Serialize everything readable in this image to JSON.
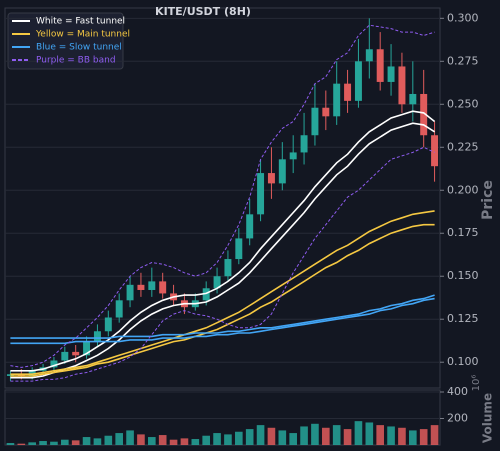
{
  "chart_data": {
    "type": "candlestick",
    "title": "KITE/USDT (8H)",
    "ylabel": "Price",
    "ylim": [
      0.085,
      0.306
    ],
    "yticks": [
      {
        "value": 0.1,
        "label": "0.100"
      },
      {
        "value": 0.125,
        "label": "0.125"
      },
      {
        "value": 0.15,
        "label": "0.150"
      },
      {
        "value": 0.175,
        "label": "0.175"
      },
      {
        "value": 0.2,
        "label": "0.200"
      },
      {
        "value": 0.225,
        "label": "0.225"
      },
      {
        "value": 0.25,
        "label": "0.250"
      },
      {
        "value": 0.275,
        "label": "0.275"
      },
      {
        "value": 0.3,
        "label": "0.300"
      }
    ],
    "grid": true,
    "legend": "upper left",
    "up_color": "#26a69a",
    "down_color": "#e05c5c",
    "candles": {
      "open": [
        0.092,
        0.093,
        0.092,
        0.095,
        0.097,
        0.101,
        0.106,
        0.104,
        0.112,
        0.118,
        0.126,
        0.136,
        0.145,
        0.142,
        0.147,
        0.14,
        0.136,
        0.132,
        0.136,
        0.143,
        0.15,
        0.16,
        0.172,
        0.186,
        0.21,
        0.204,
        0.218,
        0.222,
        0.232,
        0.248,
        0.243,
        0.262,
        0.252,
        0.275,
        0.282,
        0.263,
        0.272,
        0.25,
        0.256,
        0.232
      ],
      "high": [
        0.095,
        0.096,
        0.097,
        0.099,
        0.103,
        0.109,
        0.11,
        0.115,
        0.122,
        0.13,
        0.14,
        0.15,
        0.152,
        0.155,
        0.152,
        0.145,
        0.14,
        0.14,
        0.147,
        0.155,
        0.165,
        0.178,
        0.195,
        0.218,
        0.225,
        0.228,
        0.232,
        0.245,
        0.262,
        0.258,
        0.275,
        0.27,
        0.288,
        0.3,
        0.292,
        0.285,
        0.28,
        0.275,
        0.27,
        0.24
      ],
      "low": [
        0.089,
        0.09,
        0.09,
        0.093,
        0.095,
        0.099,
        0.1,
        0.102,
        0.109,
        0.115,
        0.123,
        0.132,
        0.138,
        0.138,
        0.137,
        0.133,
        0.128,
        0.13,
        0.133,
        0.14,
        0.147,
        0.157,
        0.168,
        0.182,
        0.195,
        0.2,
        0.21,
        0.215,
        0.226,
        0.235,
        0.238,
        0.245,
        0.248,
        0.265,
        0.258,
        0.255,
        0.245,
        0.24,
        0.225,
        0.205
      ],
      "close": [
        0.093,
        0.092,
        0.095,
        0.097,
        0.101,
        0.106,
        0.104,
        0.112,
        0.118,
        0.126,
        0.136,
        0.145,
        0.142,
        0.147,
        0.14,
        0.136,
        0.132,
        0.136,
        0.143,
        0.15,
        0.16,
        0.172,
        0.186,
        0.21,
        0.204,
        0.218,
        0.222,
        0.232,
        0.248,
        0.243,
        0.262,
        0.252,
        0.275,
        0.282,
        0.263,
        0.272,
        0.25,
        0.256,
        0.232,
        0.214
      ]
    },
    "volume": {
      "label": "Volume",
      "unit": "10⁶",
      "ylim": [
        0,
        415
      ],
      "yticks": [
        200,
        400
      ],
      "values": [
        15,
        10,
        20,
        30,
        25,
        40,
        35,
        60,
        50,
        70,
        90,
        110,
        80,
        60,
        75,
        40,
        50,
        45,
        70,
        90,
        80,
        100,
        120,
        150,
        130,
        110,
        90,
        140,
        160,
        130,
        150,
        120,
        180,
        170,
        150,
        140,
        130,
        110,
        120,
        150
      ]
    },
    "series": [
      {
        "name": "White = Fast tunnel",
        "color": "#ffffff",
        "dashed": false,
        "upper": [
          0.095,
          0.095,
          0.095,
          0.096,
          0.098,
          0.1,
          0.102,
          0.105,
          0.109,
          0.113,
          0.118,
          0.124,
          0.129,
          0.133,
          0.136,
          0.138,
          0.139,
          0.139,
          0.14,
          0.143,
          0.147,
          0.152,
          0.158,
          0.166,
          0.173,
          0.18,
          0.187,
          0.194,
          0.202,
          0.209,
          0.216,
          0.221,
          0.228,
          0.234,
          0.238,
          0.242,
          0.244,
          0.246,
          0.245,
          0.24
        ],
        "lower": [
          0.091,
          0.091,
          0.091,
          0.092,
          0.094,
          0.096,
          0.098,
          0.101,
          0.104,
          0.108,
          0.113,
          0.119,
          0.124,
          0.128,
          0.131,
          0.133,
          0.134,
          0.134,
          0.135,
          0.138,
          0.142,
          0.146,
          0.152,
          0.159,
          0.166,
          0.173,
          0.18,
          0.187,
          0.195,
          0.202,
          0.209,
          0.214,
          0.221,
          0.227,
          0.231,
          0.235,
          0.237,
          0.239,
          0.238,
          0.234
        ]
      },
      {
        "name": "Yellow = Main tunnel",
        "color": "#f5c842",
        "dashed": false,
        "upper": [
          0.093,
          0.093,
          0.093,
          0.094,
          0.095,
          0.096,
          0.097,
          0.098,
          0.1,
          0.102,
          0.104,
          0.106,
          0.108,
          0.11,
          0.112,
          0.114,
          0.116,
          0.118,
          0.12,
          0.123,
          0.126,
          0.129,
          0.133,
          0.137,
          0.141,
          0.145,
          0.149,
          0.153,
          0.157,
          0.161,
          0.165,
          0.168,
          0.172,
          0.176,
          0.179,
          0.182,
          0.184,
          0.186,
          0.187,
          0.188
        ],
        "lower": [
          0.092,
          0.092,
          0.092,
          0.093,
          0.094,
          0.095,
          0.096,
          0.097,
          0.099,
          0.1,
          0.102,
          0.104,
          0.106,
          0.108,
          0.11,
          0.112,
          0.113,
          0.115,
          0.117,
          0.119,
          0.122,
          0.125,
          0.128,
          0.132,
          0.135,
          0.139,
          0.143,
          0.147,
          0.151,
          0.155,
          0.158,
          0.162,
          0.165,
          0.169,
          0.172,
          0.175,
          0.177,
          0.179,
          0.18,
          0.18
        ]
      },
      {
        "name": "Blue = Slow tunnel",
        "color": "#42a5f5",
        "dashed": false,
        "upper": [
          0.114,
          0.114,
          0.114,
          0.114,
          0.114,
          0.114,
          0.114,
          0.114,
          0.114,
          0.114,
          0.115,
          0.115,
          0.115,
          0.115,
          0.116,
          0.116,
          0.116,
          0.117,
          0.117,
          0.117,
          0.118,
          0.118,
          0.119,
          0.12,
          0.12,
          0.121,
          0.122,
          0.123,
          0.124,
          0.125,
          0.126,
          0.127,
          0.128,
          0.13,
          0.131,
          0.133,
          0.134,
          0.136,
          0.137,
          0.139
        ],
        "lower": [
          0.111,
          0.111,
          0.111,
          0.111,
          0.111,
          0.111,
          0.112,
          0.112,
          0.112,
          0.112,
          0.112,
          0.113,
          0.113,
          0.113,
          0.114,
          0.114,
          0.114,
          0.115,
          0.115,
          0.116,
          0.116,
          0.117,
          0.117,
          0.118,
          0.119,
          0.12,
          0.121,
          0.122,
          0.123,
          0.124,
          0.125,
          0.126,
          0.127,
          0.128,
          0.13,
          0.131,
          0.133,
          0.134,
          0.136,
          0.137
        ]
      },
      {
        "name": "Purple = BB band",
        "color": "#8e5cf0",
        "dashed": true,
        "upper": [
          0.098,
          0.097,
          0.098,
          0.1,
          0.104,
          0.11,
          0.114,
          0.12,
          0.126,
          0.133,
          0.142,
          0.15,
          0.155,
          0.158,
          0.157,
          0.155,
          0.152,
          0.15,
          0.152,
          0.158,
          0.168,
          0.18,
          0.196,
          0.218,
          0.228,
          0.236,
          0.24,
          0.25,
          0.262,
          0.266,
          0.276,
          0.28,
          0.29,
          0.296,
          0.295,
          0.294,
          0.292,
          0.292,
          0.29,
          0.292
        ],
        "lower": [
          0.089,
          0.089,
          0.089,
          0.09,
          0.09,
          0.091,
          0.093,
          0.094,
          0.096,
          0.098,
          0.1,
          0.103,
          0.108,
          0.116,
          0.124,
          0.128,
          0.13,
          0.128,
          0.127,
          0.125,
          0.122,
          0.12,
          0.12,
          0.122,
          0.128,
          0.14,
          0.152,
          0.162,
          0.172,
          0.18,
          0.188,
          0.196,
          0.2,
          0.206,
          0.212,
          0.218,
          0.22,
          0.222,
          0.225,
          0.222
        ]
      }
    ]
  }
}
